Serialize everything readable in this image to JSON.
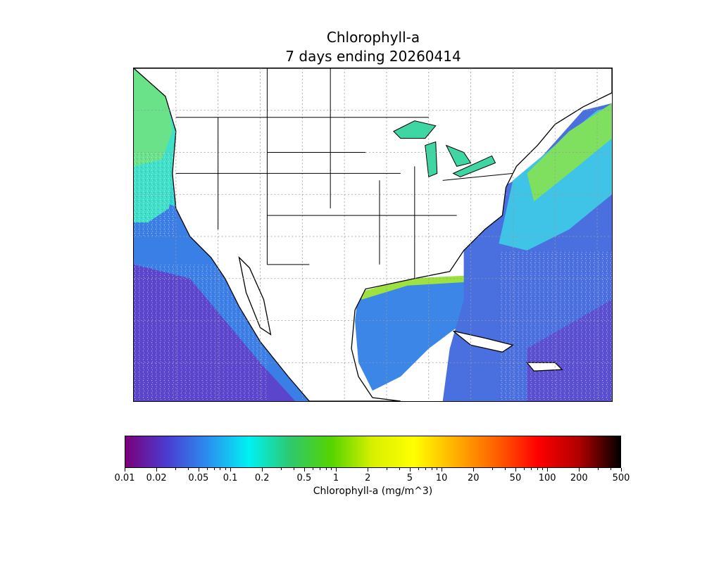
{
  "title": {
    "line1": "Chlorophyll-a",
    "line2": "7 days ending 20260414"
  },
  "colorbar": {
    "label": "Chlorophyll-a (mg/m^3)",
    "scale": "log",
    "range": [
      0.01,
      500
    ],
    "tick_labels": [
      "0.01",
      "0.02",
      "0.05",
      "0.1",
      "0.2",
      "0.5",
      "1",
      "2",
      "5",
      "10",
      "20",
      "50",
      "100",
      "200",
      "500"
    ],
    "tick_values": [
      0.01,
      0.02,
      0.05,
      0.1,
      0.2,
      0.5,
      1,
      2,
      5,
      10,
      20,
      50,
      100,
      200,
      500
    ],
    "gradient_colors": [
      "#7a007a",
      "#4b3bd0",
      "#2a8ff0",
      "#00f2f2",
      "#2ec86e",
      "#55d400",
      "#d8f000",
      "#ffff00",
      "#ffb000",
      "#ff6000",
      "#ff0000",
      "#b00000",
      "#000000"
    ]
  },
  "map": {
    "land_color": "#ffffff",
    "border_color": "#000000",
    "gridlines": "dotted grey",
    "ocean_colors": {
      "low": "#5b3fd0",
      "mid": "#3aa0f0",
      "high": "#7ee06a"
    }
  }
}
